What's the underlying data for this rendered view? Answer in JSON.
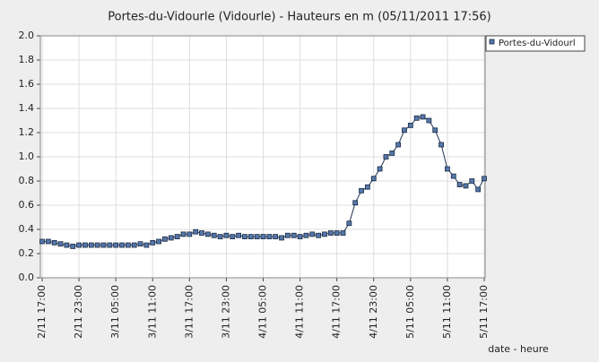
{
  "chart_data": {
    "type": "line",
    "title": "Portes-du-Vidourle (Vidourle) - Hauteurs en m (05/11/2011 17:56)",
    "x_label": "date - heure",
    "categories": [
      "2/11 17:00",
      null,
      null,
      null,
      null,
      null,
      "2/11 23:00",
      null,
      null,
      null,
      null,
      null,
      "3/11 05:00",
      null,
      null,
      null,
      null,
      null,
      "3/11 11:00",
      null,
      null,
      null,
      null,
      null,
      "3/11 17:00",
      null,
      null,
      null,
      null,
      null,
      "3/11 23:00",
      null,
      null,
      null,
      null,
      null,
      "4/11 05:00",
      null,
      null,
      null,
      null,
      null,
      "4/11 11:00",
      null,
      null,
      null,
      null,
      null,
      "4/11 17:00",
      null,
      null,
      null,
      null,
      null,
      "4/11 23:00",
      null,
      null,
      null,
      null,
      null,
      "5/11 05:00",
      null,
      null,
      null,
      null,
      null,
      "5/11 11:00",
      null,
      null,
      null,
      null,
      null,
      "5/11 17:00"
    ],
    "series": [
      {
        "name": "Portes-du-Vidourl",
        "color": "#5577aa",
        "values": [
          0.3,
          0.3,
          0.29,
          0.28,
          0.27,
          0.26,
          0.27,
          0.27,
          0.27,
          0.27,
          0.27,
          0.27,
          0.27,
          0.27,
          0.27,
          0.27,
          0.28,
          0.27,
          0.29,
          0.3,
          0.32,
          0.33,
          0.34,
          0.36,
          0.36,
          0.38,
          0.37,
          0.36,
          0.35,
          0.34,
          0.35,
          0.34,
          0.35,
          0.34,
          0.34,
          0.34,
          0.34,
          0.34,
          0.34,
          0.33,
          0.35,
          0.35,
          0.34,
          0.35,
          0.36,
          0.35,
          0.36,
          0.37,
          0.37,
          0.37,
          0.45,
          0.62,
          0.72,
          0.75,
          0.82,
          0.9,
          1.0,
          1.03,
          1.1,
          1.22,
          1.26,
          1.32,
          1.33,
          1.3,
          1.22,
          1.1,
          0.9,
          0.84,
          0.77,
          0.76,
          0.8,
          0.73,
          0.82
        ]
      }
    ],
    "ylim": [
      0,
      2
    ],
    "yticks": [
      {
        "value": 0,
        "label": "0.0"
      },
      0.2,
      0.4,
      0.6,
      0.8,
      {
        "value": 1,
        "label": "1.0"
      },
      1.2,
      1.4,
      1.6,
      1.8,
      {
        "value": 2,
        "label": "2.0"
      }
    ],
    "grid": true,
    "legend": "top-right"
  }
}
